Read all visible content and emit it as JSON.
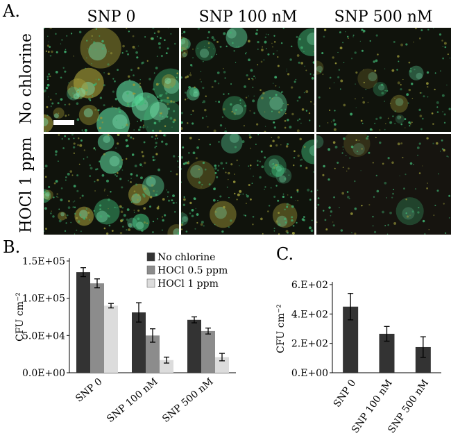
{
  "figure": {
    "panel_a_label": "A.",
    "panel_b_label": "B.",
    "panel_c_label": "C.",
    "columns": [
      "SNP 0",
      "SNP 100 nM",
      "SNP 500 nM"
    ],
    "rows": [
      "No chlorine",
      "HOCl 1 ppm"
    ]
  },
  "chart_data": [
    {
      "panel": "B.",
      "type": "bar",
      "categories": [
        "SNP 0",
        "SNP 100 nM",
        "SNP 500 nM"
      ],
      "series": [
        {
          "name": "No chlorine",
          "values": [
            135000,
            81000,
            71000
          ],
          "errors": [
            6000,
            13000,
            4000
          ],
          "color": "#333333"
        },
        {
          "name": "HOCl 0.5 ppm",
          "values": [
            120000,
            50000,
            56000
          ],
          "errors": [
            6000,
            9000,
            4000
          ],
          "color": "#8c8c8c"
        },
        {
          "name": "HOCl 1 ppm",
          "values": [
            90000,
            17000,
            21000
          ],
          "errors": [
            3000,
            4000,
            5000
          ],
          "color": "#dcdcdc"
        }
      ],
      "ylabel": "CFU cm⁻²",
      "yticks": [
        "0.0E+00",
        "5.0E+04",
        "1.0E+05",
        "1.5E+05"
      ],
      "ylim": [
        0,
        150000
      ],
      "legend_position": "top-right"
    },
    {
      "panel": "C.",
      "type": "bar",
      "categories": [
        "SNP 0",
        "SNP 100 nM",
        "SNP 500 nM"
      ],
      "values": [
        450,
        265,
        175
      ],
      "errors": [
        90,
        50,
        70
      ],
      "color": "#333333",
      "ylabel": "CFU cm⁻²",
      "yticks": [
        "0.E+00",
        "2.E+02",
        "4.E+02",
        "6.E+02"
      ],
      "ylim": [
        0,
        600
      ]
    }
  ]
}
